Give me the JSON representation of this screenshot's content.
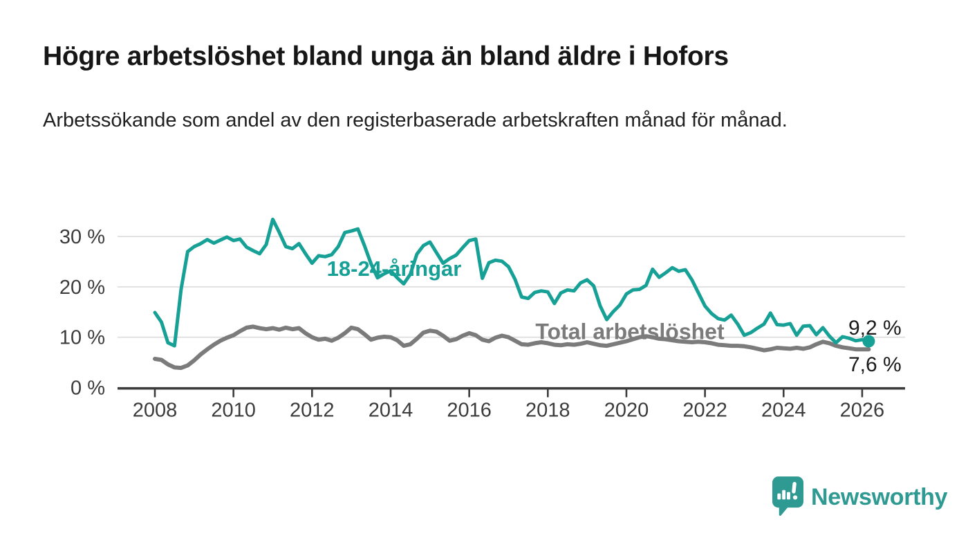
{
  "header": {
    "title": "Högre arbetslöshet bland unga än bland äldre i Hofors",
    "subtitle": "Arbetssökande som andel av den registerbaserade arbetskraften månad för månad."
  },
  "branding": {
    "logo_text": "Newsworthy",
    "logo_color": "#2E9A92",
    "logo_icon": "speech-bubble-bar-chart-exclamation"
  },
  "colors": {
    "youth_line": "#16A096",
    "total_line": "#7B7B7B",
    "axis": "#3C3C3C",
    "gridline": "#DBDBDB",
    "annotation_text": "#1a1a1a"
  },
  "chart_data": {
    "type": "line",
    "title": "Högre arbetslöshet bland unga än bland äldre i Hofors",
    "subtitle": "Arbetssökande som andel av den registerbaserade arbetskraften månad för månad.",
    "unit": "%",
    "grid": "horizontal",
    "legend_position": "inline-labels-on-chart",
    "x_start_year": 2008,
    "x_step_months": 2,
    "x_end": "2026 (februari)",
    "xlim": [
      2007.05,
      2027.1
    ],
    "ylim": [
      0,
      35
    ],
    "x_ticks": [
      "2008",
      "2010",
      "2012",
      "2014",
      "2016",
      "2018",
      "2020",
      "2022",
      "2024",
      "2026"
    ],
    "y_ticks": [
      {
        "value": 0,
        "label": "0 %"
      },
      {
        "value": 10,
        "label": "10 %"
      },
      {
        "value": 20,
        "label": "20 %"
      },
      {
        "value": 30,
        "label": "30 %"
      }
    ],
    "series": [
      {
        "name": "18-24-åringar",
        "color": "#16A096",
        "line_width": 5,
        "end_value": 9.2,
        "end_label": "9,2 %",
        "end_dot": true,
        "values": [
          14.9,
          13.0,
          8.9,
          8.3,
          19.5,
          27.0,
          28.0,
          28.6,
          29.4,
          28.7,
          29.3,
          29.9,
          29.2,
          29.5,
          27.9,
          27.2,
          26.6,
          28.4,
          33.4,
          30.8,
          28.0,
          27.6,
          28.6,
          26.6,
          24.7,
          26.2,
          26.0,
          26.4,
          28.0,
          30.8,
          31.1,
          31.5,
          28.2,
          24.6,
          21.8,
          22.6,
          23.2,
          21.8,
          20.6,
          22.5,
          26.5,
          28.2,
          28.9,
          26.8,
          24.7,
          25.6,
          26.3,
          27.8,
          29.2,
          29.5,
          21.7,
          24.8,
          25.3,
          25.1,
          24.0,
          21.5,
          18.0,
          17.7,
          18.9,
          19.2,
          19.0,
          16.7,
          18.8,
          19.4,
          19.2,
          20.8,
          21.4,
          20.2,
          16.2,
          13.5,
          15.1,
          16.4,
          18.6,
          19.4,
          19.5,
          20.3,
          23.5,
          21.9,
          22.8,
          23.8,
          23.1,
          23.4,
          21.4,
          18.8,
          16.2,
          14.7,
          13.7,
          13.4,
          14.4,
          12.6,
          10.4,
          10.9,
          11.8,
          12.6,
          14.8,
          12.5,
          12.4,
          12.7,
          10.4,
          12.2,
          12.3,
          10.5,
          11.9,
          10.2,
          8.9,
          10.1,
          9.8,
          9.3,
          9.5,
          9.2
        ]
      },
      {
        "name": "Total arbetslöshet",
        "color": "#7B7B7B",
        "line_width": 6,
        "end_value": 7.6,
        "end_label": "7,6 %",
        "end_dot": false,
        "values": [
          5.7,
          5.5,
          4.6,
          4.0,
          3.9,
          4.4,
          5.4,
          6.6,
          7.6,
          8.5,
          9.3,
          9.9,
          10.4,
          11.2,
          11.9,
          12.1,
          11.8,
          11.6,
          11.8,
          11.5,
          11.9,
          11.6,
          11.8,
          10.8,
          10.0,
          9.5,
          9.7,
          9.3,
          9.9,
          10.8,
          11.9,
          11.6,
          10.6,
          9.5,
          9.9,
          10.1,
          10.0,
          9.4,
          8.3,
          8.6,
          9.7,
          10.9,
          11.3,
          11.1,
          10.3,
          9.3,
          9.6,
          10.3,
          10.8,
          10.4,
          9.5,
          9.2,
          9.9,
          10.3,
          10.0,
          9.3,
          8.6,
          8.5,
          8.8,
          9.0,
          8.8,
          8.5,
          8.4,
          8.6,
          8.5,
          8.7,
          9.0,
          8.7,
          8.4,
          8.3,
          8.6,
          8.9,
          9.2,
          9.6,
          10.0,
          10.2,
          10.0,
          9.7,
          9.6,
          9.4,
          9.2,
          9.1,
          9.0,
          9.1,
          9.0,
          8.8,
          8.5,
          8.4,
          8.3,
          8.3,
          8.2,
          8.0,
          7.7,
          7.4,
          7.6,
          7.9,
          7.8,
          7.7,
          7.9,
          7.7,
          8.0,
          8.6,
          9.1,
          8.8,
          8.3,
          8.0,
          7.8,
          7.6,
          7.6,
          7.6
        ]
      }
    ]
  }
}
